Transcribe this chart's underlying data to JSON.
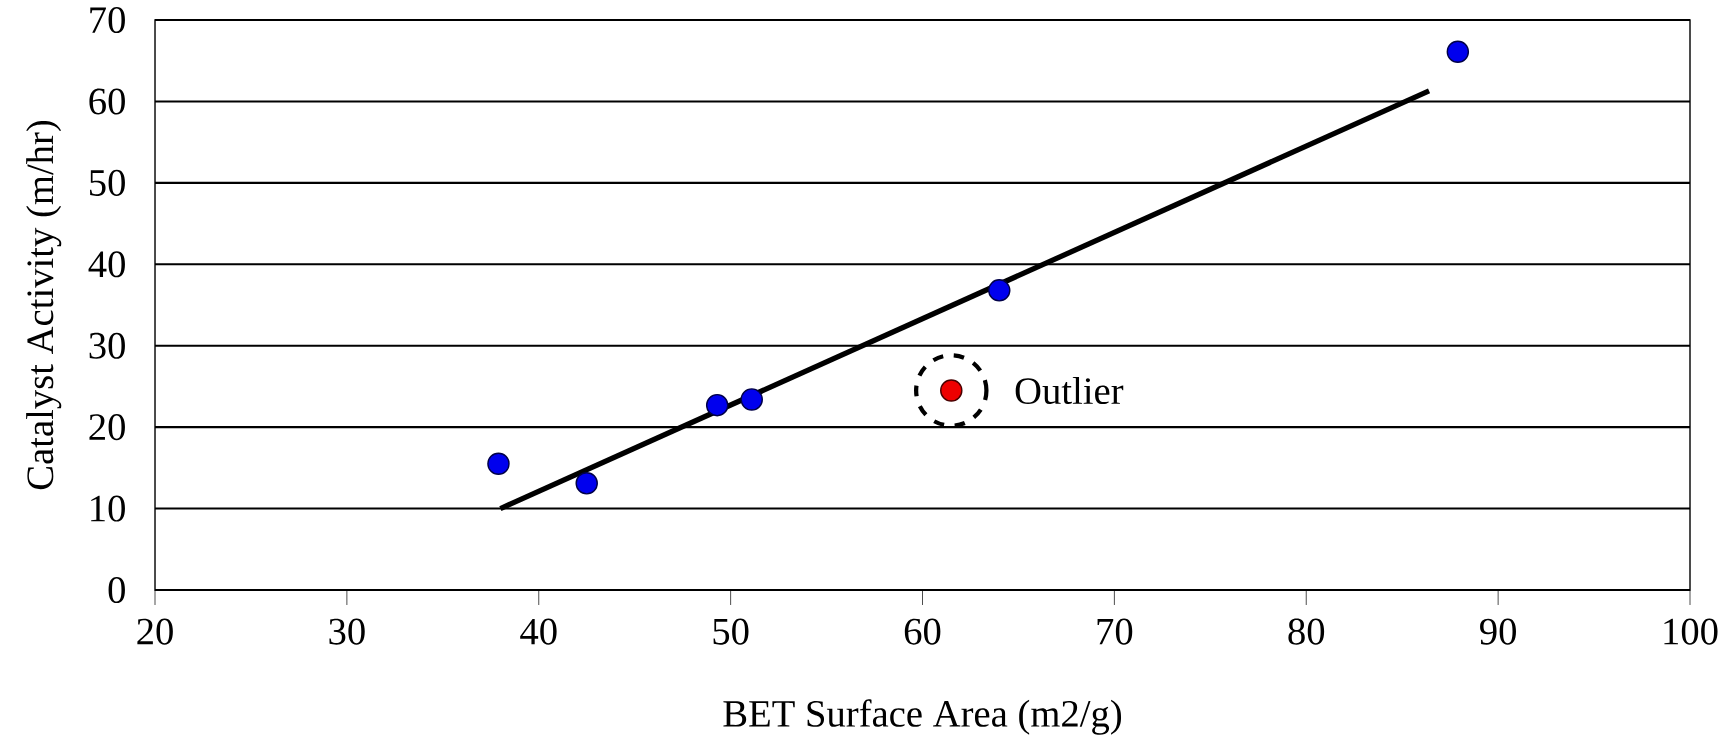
{
  "chart_data": {
    "type": "scatter",
    "xlabel": "BET Surface Area (m2/g)",
    "ylabel": "Catalyst Activity (m/hr)",
    "xlim": [
      20,
      100
    ],
    "xticks": [
      20,
      30,
      40,
      50,
      60,
      70,
      80,
      90,
      100
    ],
    "ylim": [
      0,
      70
    ],
    "yticks": [
      0,
      10,
      20,
      30,
      40,
      50,
      60,
      70
    ],
    "grid": "y",
    "series": [
      {
        "marker": "circle",
        "color": "#0000ee",
        "x": [
          37.9,
          42.5,
          49.3,
          51.1,
          64.0,
          87.9
        ],
        "values": [
          15.5,
          13.1,
          22.7,
          23.4,
          36.8,
          66.1
        ]
      },
      {
        "marker": "circle",
        "color": "#ee0000",
        "x": [
          61.5
        ],
        "values": [
          24.5
        ]
      },
      {
        "type": "line",
        "marker": "none",
        "color": "#000000",
        "x": [
          38.0,
          86.4
        ],
        "values": [
          10.0,
          61.3
        ]
      }
    ],
    "annotations": [
      {
        "text": "Outlier",
        "x": 61.5,
        "y": 24.5
      }
    ]
  }
}
